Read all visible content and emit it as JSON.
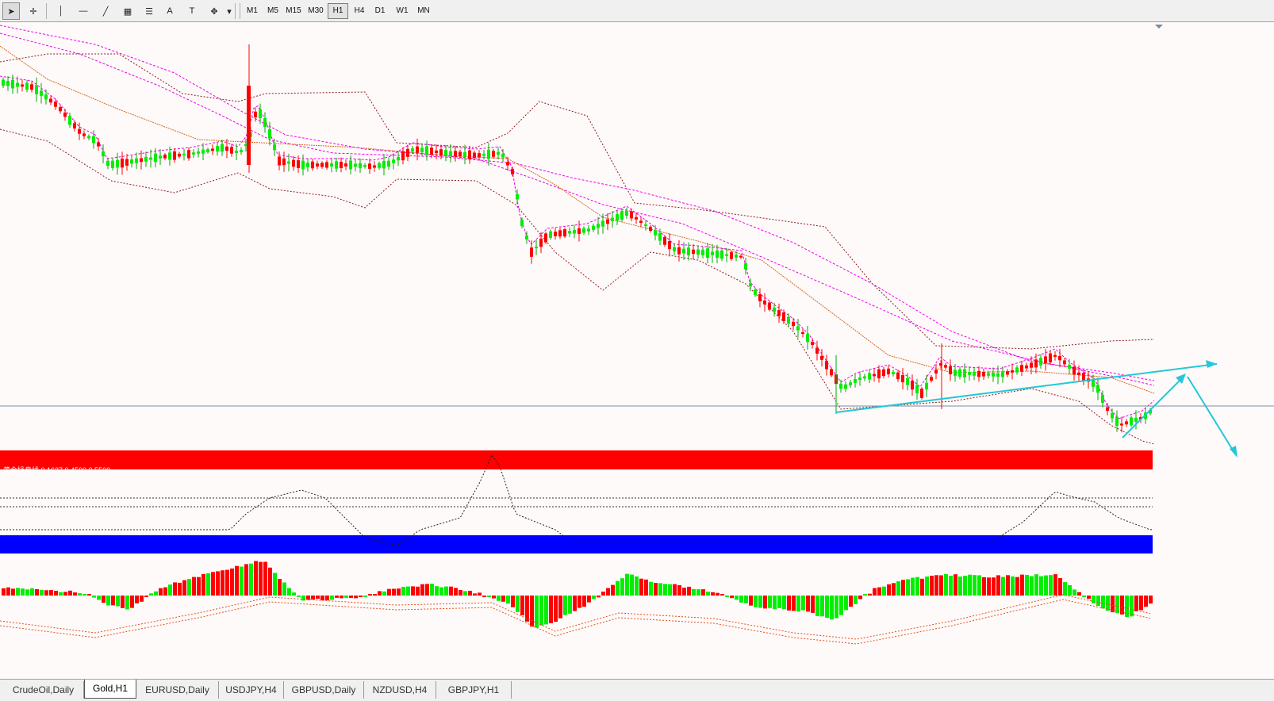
{
  "toolbar": {
    "tools": [
      {
        "name": "cursor-icon",
        "glyph": "➤",
        "active": true
      },
      {
        "name": "crosshair-icon",
        "glyph": "✛",
        "active": false
      },
      {
        "name": "vertical-line-icon",
        "glyph": "│",
        "active": false
      },
      {
        "name": "horizontal-line-icon",
        "glyph": "―",
        "active": false
      },
      {
        "name": "trendline-icon",
        "glyph": "╱",
        "active": false
      },
      {
        "name": "channel-icon",
        "glyph": "▦",
        "active": false
      },
      {
        "name": "fibonacci-icon",
        "glyph": "☰",
        "active": false
      },
      {
        "name": "text-icon",
        "glyph": "A",
        "active": false
      },
      {
        "name": "text-label-icon",
        "glyph": "T",
        "active": false
      },
      {
        "name": "arrows-icon",
        "glyph": "✥",
        "active": false
      },
      {
        "name": "dropdown-icon",
        "glyph": "▾",
        "active": false
      }
    ],
    "timeframes": [
      "M1",
      "M5",
      "M15",
      "M30",
      "H1",
      "H4",
      "D1",
      "W1",
      "MN"
    ],
    "active_timeframe": "H1"
  },
  "indicator_label": "黄金操盘线 0.1637 0.4500 0.5500",
  "symbol_tabs": [
    "CrudeOil,Daily",
    "Gold,H1",
    "EURUSD,Daily",
    "USDJPY,H4",
    "GBPUSD,Daily",
    "NZDUSD,H4",
    "GBPJPY,H1"
  ],
  "active_tab": "Gold,H1",
  "colors": {
    "bull": "#ff0000",
    "bear": "#00ee00",
    "bb": "#8b1a1a",
    "ma_magenta": "#ee00ee",
    "ma_orange": "#d2691e",
    "arrow": "#22c8d8",
    "hline": "#7a8aa0",
    "red_band": "#ff0000",
    "blue_band": "#0000ff"
  }
}
